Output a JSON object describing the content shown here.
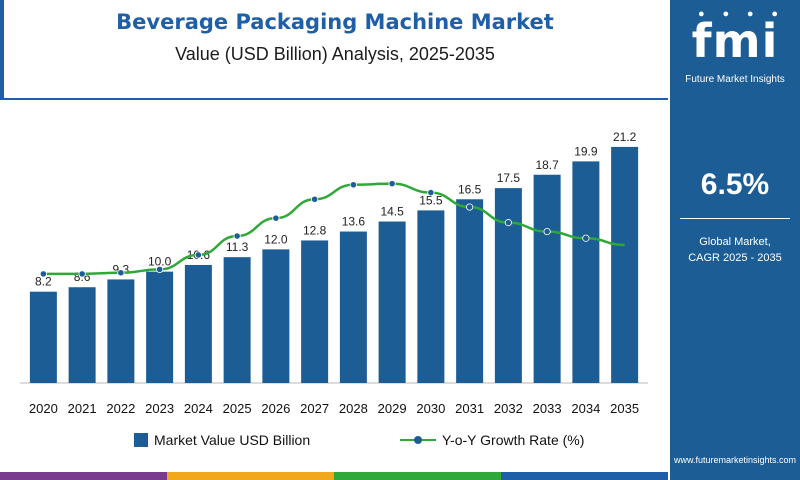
{
  "header": {
    "title": "Beverage Packaging Machine Market",
    "subtitle": "Value (USD Billion) Analysis, 2025-2035"
  },
  "sidebar": {
    "logo_text": "fmi",
    "logo_subtext": "Future Market Insights",
    "cagr_value": "6.5%",
    "cagr_label_line1": "Global Market,",
    "cagr_label_line2": "CAGR 2025 - 2035",
    "website": "www.futuremarketinsights.com",
    "background_color": "#1d5d96"
  },
  "legend": {
    "bar_label": "Market Value USD Billion",
    "line_label": "Y-o-Y Growth Rate (%)"
  },
  "colors": {
    "bar": "#1d5d96",
    "line": "#2fa83a",
    "marker": "#1d5d96",
    "title": "#1f5fa8",
    "strip": [
      "#7a3b8f",
      "#f2a81d",
      "#2fa83a",
      "#1f5fa8"
    ]
  },
  "chart_data": {
    "type": "bar",
    "categories": [
      "2020",
      "2021",
      "2022",
      "2023",
      "2024",
      "2025",
      "2026",
      "2027",
      "2028",
      "2029",
      "2030",
      "2031",
      "2032",
      "2033",
      "2034",
      "2035"
    ],
    "series": [
      {
        "name": "Market Value USD Billion",
        "type": "bar",
        "values": [
          8.2,
          8.6,
          9.3,
          10.0,
          10.6,
          11.3,
          12.0,
          12.8,
          13.6,
          14.5,
          15.5,
          16.5,
          17.5,
          18.7,
          19.9,
          21.2
        ],
        "labels": [
          "8.2",
          "8.6",
          "9.3",
          "10.0",
          "10.6",
          "11.3",
          "12.0",
          "12.8",
          "13.6",
          "14.5",
          "15.5",
          "16.5",
          "17.5",
          "18.7",
          "19.9",
          "21.2"
        ]
      },
      {
        "name": "Y-o-Y Growth Rate (%)",
        "type": "line",
        "values": [
          4.9,
          4.9,
          4.95,
          5.1,
          5.75,
          6.6,
          7.4,
          8.25,
          8.9,
          8.95,
          8.55,
          7.9,
          7.2,
          6.8,
          6.5,
          6.2
        ]
      }
    ],
    "ylim": [
      0,
      22
    ],
    "growth_ylim": [
      0,
      11
    ],
    "grid": false,
    "legend_position": "bottom"
  }
}
